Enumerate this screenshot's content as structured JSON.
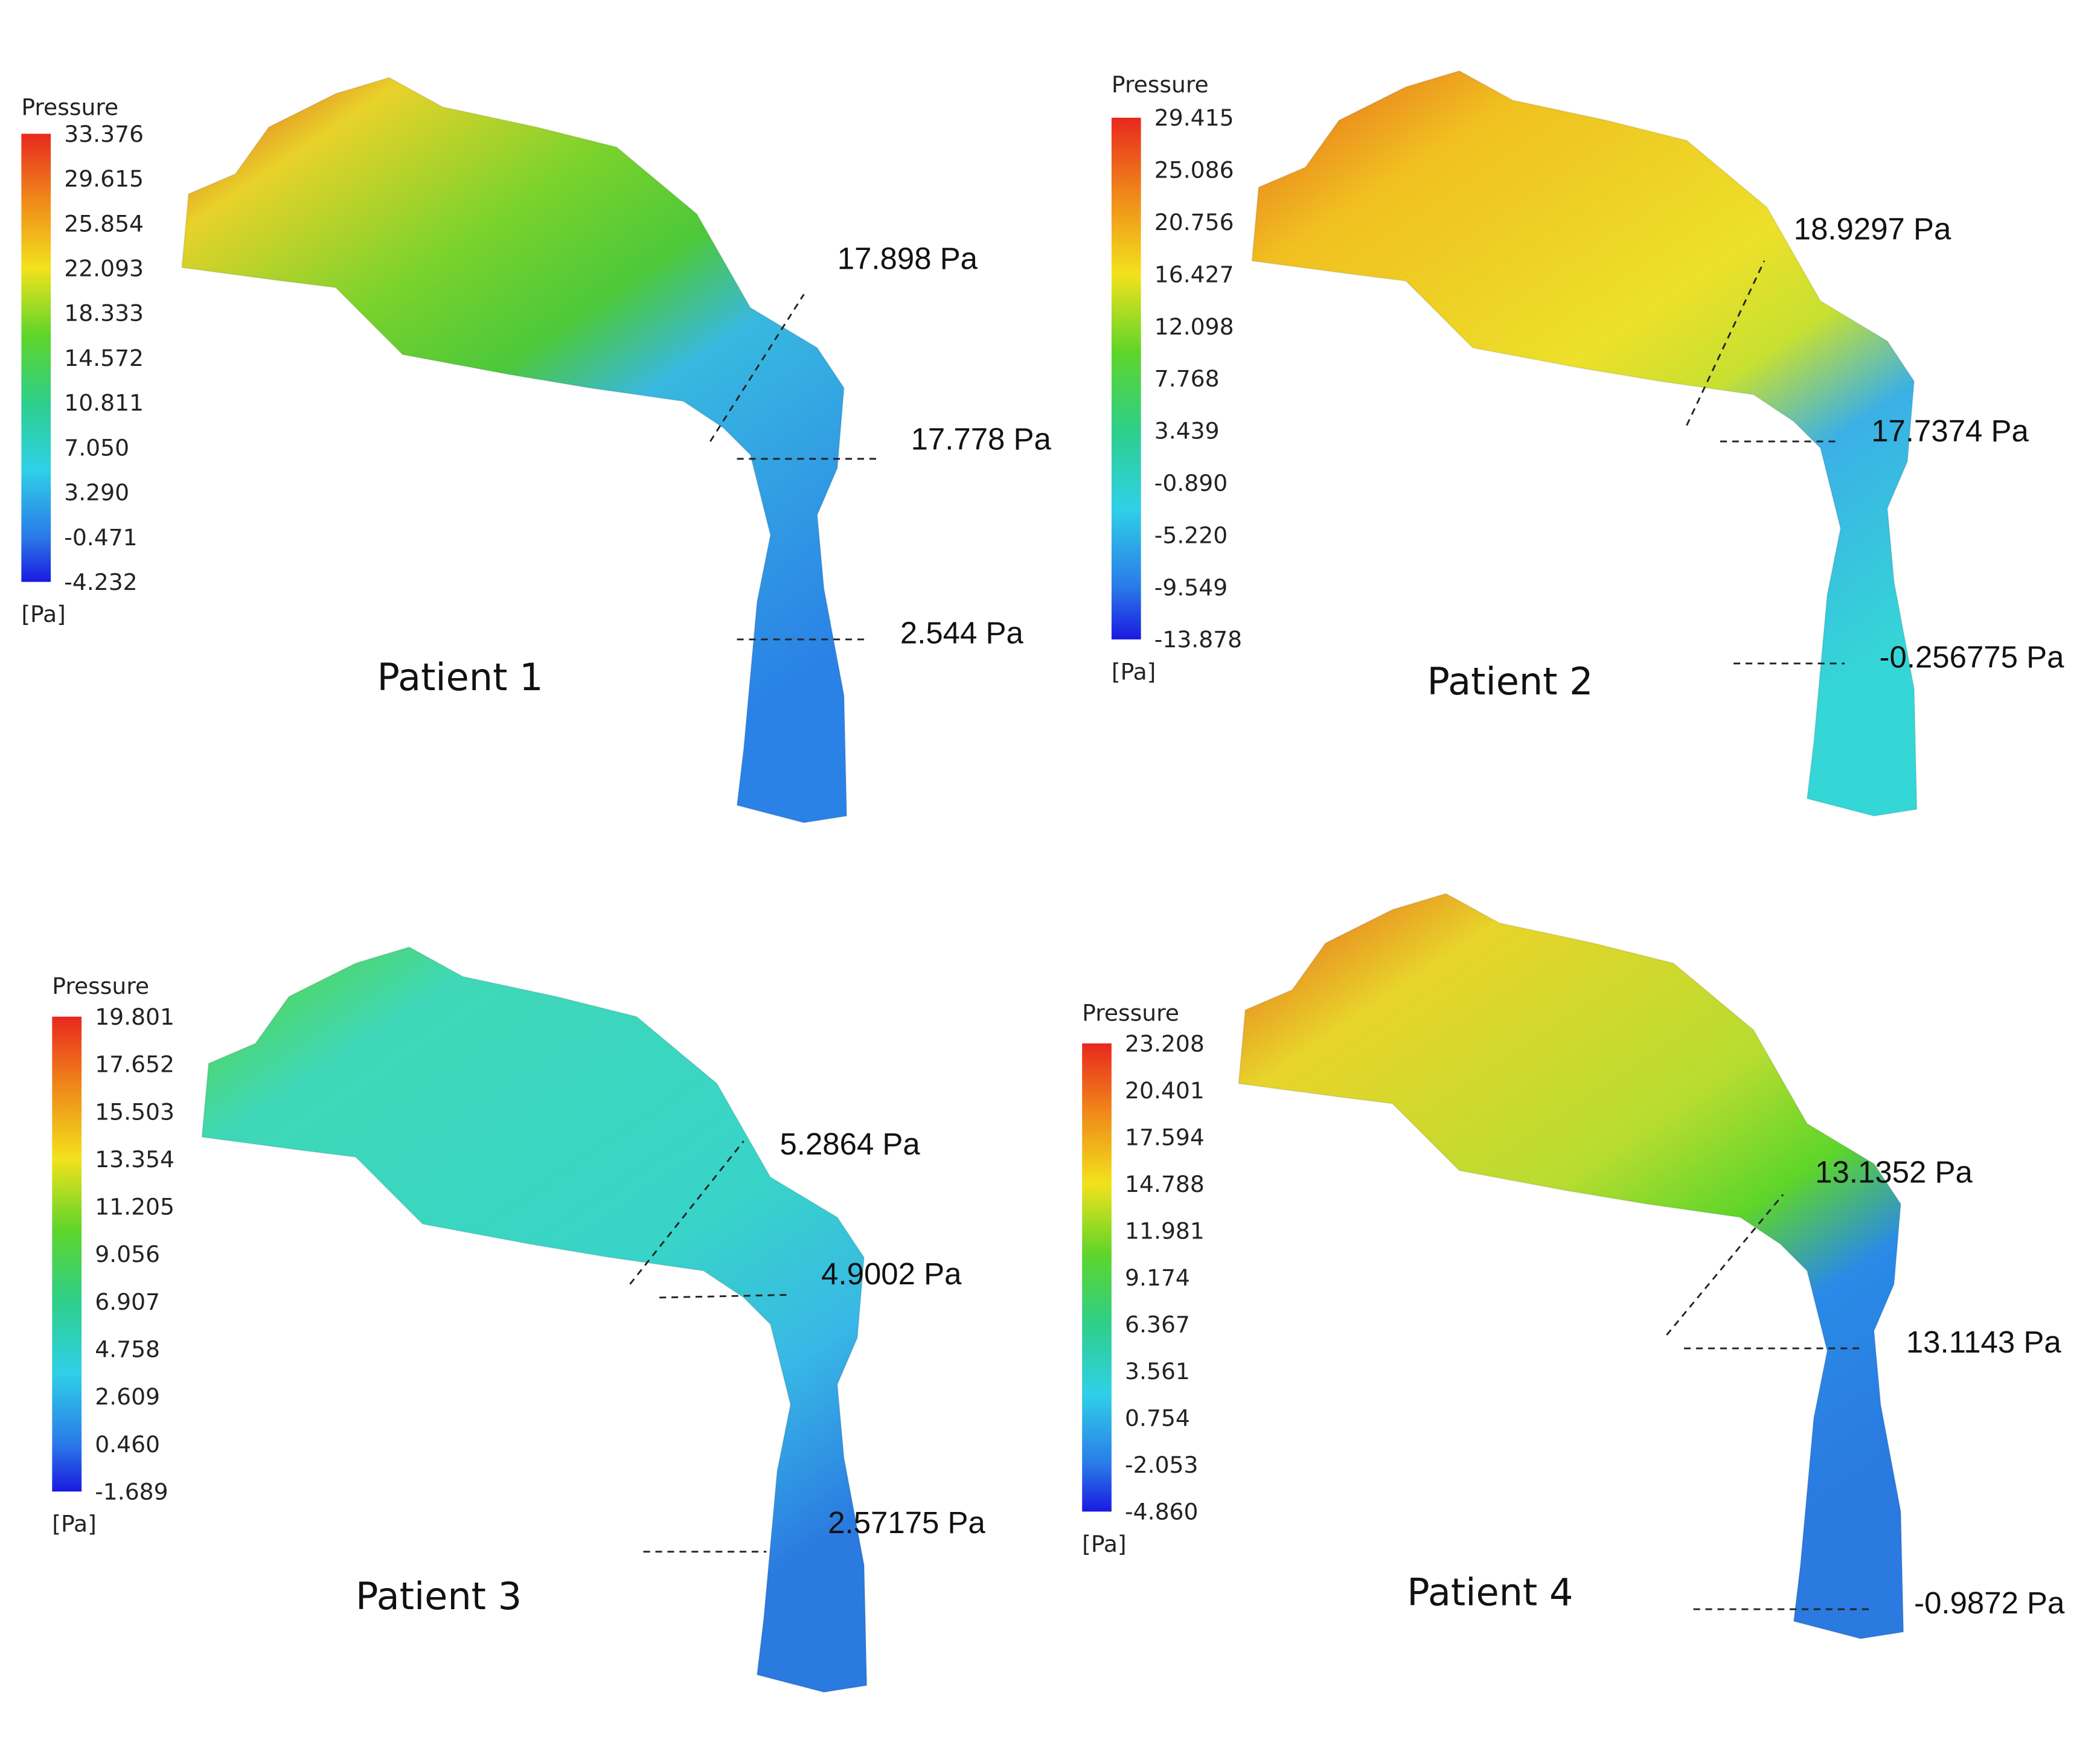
{
  "panels": [
    {
      "label": "Patient 1",
      "legend": {
        "title": "Pressure",
        "unit": "[Pa]",
        "ticks": [
          "33.376",
          "29.615",
          "25.854",
          "22.093",
          "18.333",
          "14.572",
          "10.811",
          "7.050",
          "3.290",
          "-0.471",
          "-4.232"
        ]
      },
      "sections": [
        "17.898 Pa",
        "17.778 Pa",
        "2.544 Pa"
      ]
    },
    {
      "label": "Patient 2",
      "legend": {
        "title": "Pressure",
        "unit": "[Pa]",
        "ticks": [
          "29.415",
          "25.086",
          "20.756",
          "16.427",
          "12.098",
          "7.768",
          "3.439",
          "-0.890",
          "-5.220",
          "-9.549",
          "-13.878"
        ]
      },
      "sections": [
        "18.9297 Pa",
        "17.7374 Pa",
        "-0.256775 Pa"
      ]
    },
    {
      "label": "Patient 3",
      "legend": {
        "title": "Pressure",
        "unit": "[Pa]",
        "ticks": [
          "19.801",
          "17.652",
          "15.503",
          "13.354",
          "11.205",
          "9.056",
          "6.907",
          "4.758",
          "2.609",
          "0.460",
          "-1.689"
        ]
      },
      "sections": [
        "5.2864 Pa",
        "4.9002 Pa",
        "2.57175 Pa"
      ]
    },
    {
      "label": "Patient 4",
      "legend": {
        "title": "Pressure",
        "unit": "[Pa]",
        "ticks": [
          "23.208",
          "20.401",
          "17.594",
          "14.788",
          "11.981",
          "9.174",
          "6.367",
          "3.561",
          "0.754",
          "-2.053",
          "-4.860"
        ]
      },
      "sections": [
        "13.1352 Pa",
        "13.1143 Pa",
        "-0.9872 Pa"
      ]
    }
  ]
}
